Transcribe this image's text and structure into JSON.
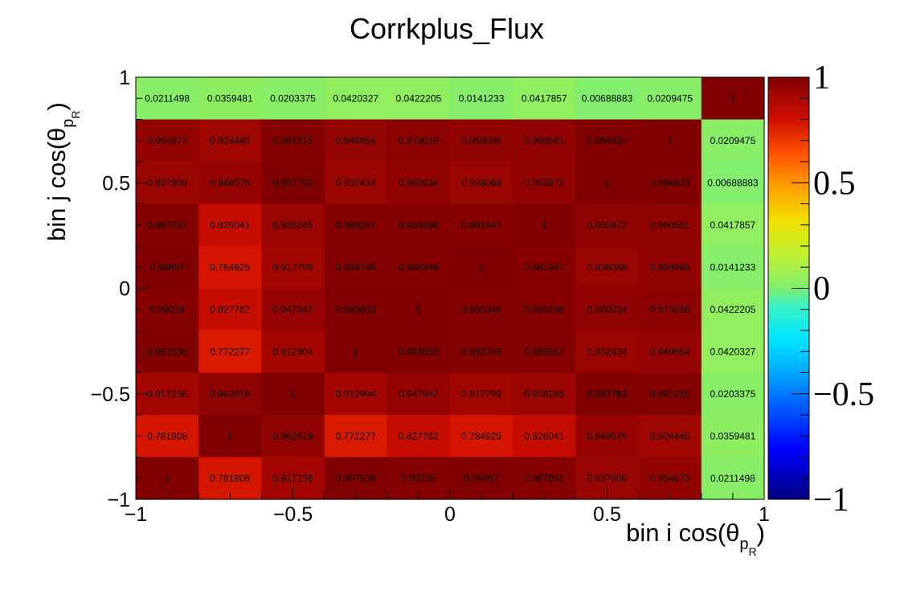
{
  "chart_data": {
    "type": "heatmap",
    "title": "Corrkplus_Flux",
    "xlabel": {
      "main": "bin i cos(θ",
      "sub_letter": "p",
      "sub_sub": "R",
      "close": ")"
    },
    "ylabel": {
      "main": "bin j cos(θ",
      "sub_letter": "p",
      "sub_sub": "R",
      "close": ")"
    },
    "xlim": [
      -1,
      1
    ],
    "ylim": [
      -1,
      1
    ],
    "x_ticks": [
      "−1",
      "−0.5",
      "0",
      "0.5",
      "1"
    ],
    "y_ticks": [
      "−1",
      "−0.5",
      "0",
      "0.5",
      "1"
    ],
    "colorbar": {
      "range": [
        -1,
        1
      ],
      "ticks": [
        "−1",
        "−0.5",
        "0",
        "0.5",
        "1"
      ]
    },
    "n_bins": 10,
    "z_labels_top_to_bottom": [
      [
        "0.0211498",
        "0.0359481",
        "0.0203375",
        "0.0420327",
        "0.0422205",
        "0.0141233",
        "0.0417857",
        "0.00688883",
        "0.0209475",
        "1"
      ],
      [
        "0.954873",
        "0.924445",
        "0.991215",
        "0.949654",
        "0.973018",
        "0.958086",
        "0.960561",
        "0.994823",
        "1",
        "0.0209475"
      ],
      [
        "0.937909",
        "0.948576",
        "0.997763",
        "0.932434",
        "0.960934",
        "0.938088",
        "0.955872",
        "1",
        "0.994823",
        "0.00688883"
      ],
      [
        "0.987851",
        "0.826041",
        "0.938245",
        "0.989267",
        "0.989196",
        "0.981947",
        "1",
        "0.955872",
        "0.960561",
        "0.0417857"
      ],
      [
        "0.99857",
        "0.784925",
        "0.917799",
        "0.993745",
        "0.986346",
        "1",
        "0.981947",
        "0.938088",
        "0.958086",
        "0.0141233"
      ],
      [
        "0.99028",
        "0.827762",
        "0.947947",
        "0.993853",
        "1",
        "0.986346",
        "0.989196",
        "0.960934",
        "0.973018",
        "0.0422205"
      ],
      [
        "0.997538",
        "0.772277",
        "0.912904",
        "1",
        "0.993853",
        "0.993745",
        "0.989267",
        "0.932434",
        "0.949654",
        "0.0420327"
      ],
      [
        "0.917236",
        "0.962619",
        "1",
        "0.912904",
        "0.947947",
        "0.917799",
        "0.938245",
        "0.997763",
        "0.991215",
        "0.0203375"
      ],
      [
        "0.781908",
        "1",
        "0.962619",
        "0.772277",
        "0.827762",
        "0.784925",
        "0.826041",
        "0.948576",
        "0.924445",
        "0.0359481"
      ],
      [
        "1",
        "0.781908",
        "0.917236",
        "0.997538",
        "0.99028",
        "0.99857",
        "0.987851",
        "0.937909",
        "0.954873",
        "0.0211498"
      ]
    ]
  }
}
